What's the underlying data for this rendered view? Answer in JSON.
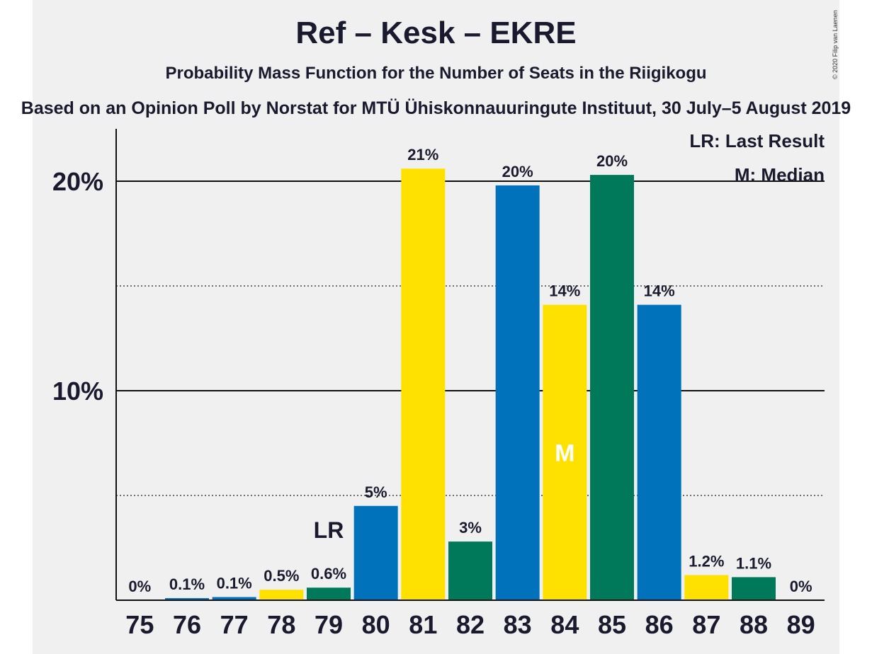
{
  "title": "Ref – Kesk – EKRE",
  "subtitle": "Probability Mass Function for the Number of Seats in the Riigikogu",
  "source_line": "Based on an Opinion Poll by Norstat for MTÜ Ühiskonnauuringute Instituut, 30 July–5 August 2019",
  "copyright": "© 2020 Filip van Laenen",
  "legend": {
    "last_result": "LR: Last Result",
    "median": "M: Median"
  },
  "colors": {
    "blue": "#0072bb",
    "yellow": "#ffe100",
    "green": "#00795a",
    "background": "#f0f0f0",
    "text": "#1a1a2e"
  },
  "chart_data": {
    "type": "bar",
    "categories": [
      "75",
      "76",
      "77",
      "78",
      "79",
      "80",
      "81",
      "82",
      "83",
      "84",
      "85",
      "86",
      "87",
      "88",
      "89"
    ],
    "values": [
      0,
      0.1,
      0.15,
      0.5,
      0.6,
      4.5,
      20.6,
      2.8,
      19.8,
      14.1,
      20.3,
      14.1,
      1.2,
      1.1,
      0
    ],
    "labels": [
      "0%",
      "0.1%",
      "0.1%",
      "0.5%",
      "0.6%",
      "5%",
      "21%",
      "3%",
      "20%",
      "14%",
      "20%",
      "14%",
      "1.2%",
      "1.1%",
      "0%"
    ],
    "bar_colors": [
      "blue",
      "blue",
      "blue",
      "yellow",
      "green",
      "blue",
      "yellow",
      "green",
      "blue",
      "yellow",
      "green",
      "blue",
      "yellow",
      "green",
      "blue"
    ],
    "y_ticks": [
      {
        "value": 10,
        "label": "10%"
      },
      {
        "value": 20,
        "label": "20%"
      }
    ],
    "minor_gridlines": [
      5,
      15
    ],
    "ylim": [
      0,
      22.5
    ],
    "last_result": {
      "category": "79",
      "label": "LR"
    },
    "median": {
      "category": "84",
      "label": "M"
    }
  }
}
